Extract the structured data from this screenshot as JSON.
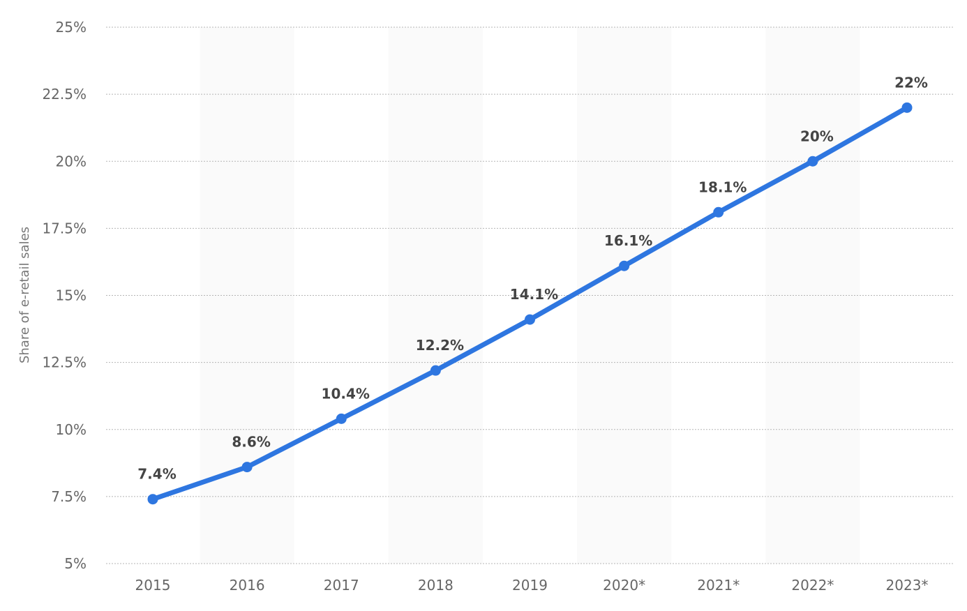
{
  "chart_data": {
    "type": "line",
    "title": "",
    "xlabel": "",
    "ylabel": "Share of e-retail sales",
    "categories": [
      "2015",
      "2016",
      "2017",
      "2018",
      "2019",
      "2020*",
      "2021*",
      "2022*",
      "2023*"
    ],
    "series": [
      {
        "values": [
          7.4,
          8.6,
          10.4,
          12.2,
          14.1,
          16.1,
          18.1,
          20,
          22
        ]
      }
    ],
    "data_labels": [
      "7.4%",
      "8.6%",
      "10.4%",
      "12.2%",
      "14.1%",
      "16.1%",
      "18.1%",
      "20%",
      "22%"
    ],
    "ylim": [
      5,
      25
    ],
    "y_ticks": [
      5,
      7.5,
      10,
      12.5,
      15,
      17.5,
      20,
      22.5,
      25
    ],
    "y_tick_labels": [
      "5%",
      "7.5%",
      "10%",
      "12.5%",
      "15%",
      "17.5%",
      "20%",
      "22.5%",
      "25%"
    ],
    "grid": true,
    "legend": "none",
    "colors": {
      "line": "#2e76e0",
      "band": "#fafafa",
      "grid": "#b5b5b5"
    }
  }
}
